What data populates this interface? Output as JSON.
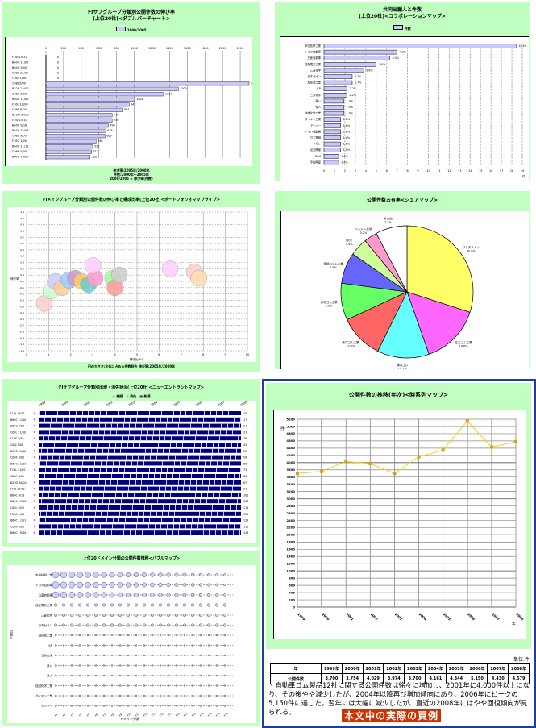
{
  "colors": {
    "panel": "#c0ffc0",
    "bar": "#c8c8ff",
    "line": "#ffcc00",
    "marker": "#d4a017",
    "border": "#1a3fa0",
    "banner": "#cc3300"
  },
  "panel1": {
    "title": "FIサブグループ分類別公開件数の伸び率",
    "subtitle": "(上位20社)<ダブルバーチャート>",
    "legend": "2000/2005",
    "note1": "伸び率:2005年/2000年",
    "note2": "件数:2000年〜2005年",
    "note3": "2000/2005 = 伸び率(件数)",
    "chart_data": {
      "type": "bar",
      "orientation": "horizontal",
      "xlim": [
        0,
        2300
      ],
      "xticks": [
        0,
        200,
        400,
        600,
        800,
        1000,
        1200,
        1400,
        1600,
        1800,
        2000,
        2200
      ],
      "categories": [
        "F16J 15/32",
        "B60C 11/00",
        "B60C 9/00",
        "C08L 21/00",
        "F16F 1/36",
        "C08J 5/00",
        "B32B 25/00",
        "C08K 3/00",
        "B60C 11/03",
        "F16L 11/00",
        "C08F 8/00",
        "B29D 30/00",
        "F16J 15/10",
        "B60C 9/18",
        "B60C 15/06",
        "C08L 9/00",
        "F16G 1/00",
        "B60C 11/11",
        "C08K 5/00",
        "B60C 19/00"
      ],
      "values": [
        0,
        0,
        0,
        0,
        0,
        2300,
        1500,
        1333,
        1004,
        942,
        867,
        750,
        750,
        706,
        678,
        669,
        568,
        530,
        517,
        500
      ]
    }
  },
  "panel2": {
    "title": "共同出願人と件数",
    "subtitle": "(上位20社)<コラボレーションマップ>",
    "legend": "件数",
    "chart_data": {
      "type": "bar",
      "orientation": "horizontal",
      "xlim": [
        0,
        19
      ],
      "xticks": [
        0,
        1,
        2,
        3,
        4,
        5,
        6,
        7,
        8,
        9,
        10,
        11,
        12,
        13,
        14,
        15,
        16,
        17,
        18,
        19
      ],
      "xlabel": "件",
      "categories": [
        "本田技研工業",
        "トヨタ自動車",
        "日産自動車",
        "住友電気工業",
        "三菱化学",
        "日本ゼオン",
        "旭化成工業",
        "JSR",
        "三井化学",
        "東レ",
        "帝人",
        "信越化学工業",
        "ダイキン工業",
        "デンソー",
        "ヤマハ発動機",
        "日立電線",
        "クラレ",
        "出光興産",
        "NOK",
        "宇部興産"
      ],
      "values": [
        18.4,
        7.0,
        6.3,
        5.0,
        3.8,
        2.7,
        2.7,
        2.2,
        2.2,
        1.9,
        1.9,
        1.9,
        1.6,
        1.6,
        1.6,
        1.6,
        1.6,
        1.6,
        1.4,
        1.4
      ],
      "labels": [
        "18.4%",
        "7.0%",
        "6.3%",
        "5.0%",
        "3.8%",
        "2.7%",
        "2.7%",
        "2.2%",
        "2.2%",
        "1.9%",
        "1.9%",
        "1.9%",
        "1.6%",
        "1.6%",
        "1.6%",
        "1.6%",
        "1.6%",
        "1.6%",
        "1.4%",
        "1.4%"
      ]
    }
  },
  "panel3": {
    "title": "FIメイングループ分類別公開件数の伸び率と構成比率(上位20社)<ポートフォリオマップライブ>",
    "footnote": "円の大きさ:全体に占める件数割合 伸び率:2005年/2000年",
    "chart_data": {
      "type": "scatter",
      "xlim": [
        0,
        10
      ],
      "ylim": [
        -1.1,
        1.1
      ],
      "xlabel": "構成比(%)",
      "ylabel": "伸び率",
      "points": [
        [
          0.8,
          -0.35
        ],
        [
          1.1,
          -0.15
        ],
        [
          1.3,
          0
        ],
        [
          1.6,
          -0.1
        ],
        [
          1.9,
          0.02
        ],
        [
          2.2,
          0.05
        ],
        [
          2.5,
          0
        ],
        [
          2.8,
          -0.05
        ],
        [
          3.1,
          0.05
        ],
        [
          3.0,
          0.25
        ],
        [
          3.9,
          0.05
        ],
        [
          4.0,
          -0.1
        ],
        [
          4.2,
          0.1
        ],
        [
          6.5,
          0.2
        ],
        [
          7.6,
          0.15
        ],
        [
          7.8,
          0.05
        ]
      ]
    }
  },
  "panel4": {
    "title": "公開件数占有率<シェアマップ>",
    "chart_data": {
      "type": "pie",
      "categories": [
        "ブリヂストン",
        "住友ゴム工業",
        "横浜ゴム",
        "東洋ゴム工業",
        "東海ゴム工業",
        "鬼怒川ゴム工業",
        "NOK",
        "バンドー化学",
        "その他"
      ],
      "values": [
        30.0,
        14.6,
        12.7,
        10.8,
        9.0,
        7.6,
        4.4,
        3.2,
        7.7
      ],
      "labels": [
        "30.0%",
        "14.6%",
        "12.7%",
        "10.8%",
        "9.0%",
        "7.6%",
        "4.4%",
        "3.2%",
        "7.7%"
      ],
      "colors": [
        "#ffff66",
        "#ff66ff",
        "#66ffff",
        "#ff6666",
        "#66ff66",
        "#6666ff",
        "#ccff99",
        "#ff99cc",
        "#ffffff"
      ]
    }
  },
  "panel5": {
    "title": "FIサブグループ分類別出現・消失状況(上位20社)<ニューエントラントマップ>",
    "legend": [
      "継続",
      "消失",
      "新規"
    ],
    "years": [
      "1999",
      "2000",
      "2001",
      "2002",
      "2003",
      "2004",
      "2005",
      "2006",
      "2007",
      "2008"
    ]
  },
  "panel6": {
    "title": "上位20ドメイン分類の公開件数推移<バブルマップ>",
    "xlabel": "ドメイン分類",
    "ylabel": "出願人"
  },
  "panel7": {
    "title": "公開件数の推移(年次)<時系列マップ>",
    "unit_label": "単位:件",
    "table_header": "年",
    "table_row_label": "公開件数",
    "note": "・自動車ゴム製品12社に関する公開件数は徐々に増加し、2001年に4,000件以上になり、その後やや減少したが、2004年以降再び増加傾向にあり、2006年にピークの5,150件に達した。翌年には大幅に減少したが、直近の2008年にはやや回復傾向が見られる。",
    "banner": "本文中の実際の頁例",
    "chart_data": {
      "type": "line",
      "title": "公開件数の推移(年次)<時系列マップ>",
      "x": [
        "1999",
        "2000",
        "2001",
        "2002",
        "2003",
        "2004",
        "2005",
        "2006",
        "2007",
        "2008"
      ],
      "xlabels": [
        "1999年",
        "2000年",
        "2001年",
        "2002年",
        "2003年",
        "2004年",
        "2005年",
        "2006年",
        "2007年",
        "2008年"
      ],
      "values": [
        3700,
        3754,
        4029,
        3974,
        3700,
        4161,
        4344,
        5150,
        4430,
        4579
      ],
      "value_labels": [
        "3,700",
        "3,754",
        "4,029",
        "3,974",
        "3,700",
        "4,161",
        "4,344",
        "5,150",
        "4,430",
        "4,579"
      ],
      "ylim": [
        0,
        5200
      ],
      "ystep": 200,
      "ylabel": "件",
      "xlabel": "年",
      "grid": true
    }
  }
}
